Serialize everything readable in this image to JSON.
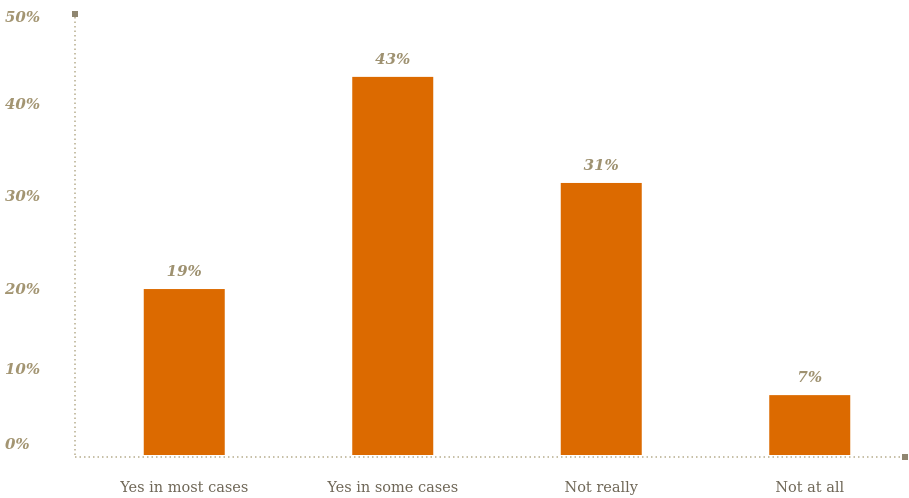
{
  "chart_data": {
    "type": "bar",
    "categories": [
      "Yes in most cases",
      "Yes in some cases",
      "Not really",
      "Not at all"
    ],
    "values": [
      19,
      43,
      31,
      7
    ],
    "data_labels": [
      "19%",
      "43%",
      "31%",
      "7%"
    ],
    "ylim": [
      0,
      50
    ],
    "y_ticks": [
      0,
      10,
      20,
      30,
      40,
      50
    ],
    "y_tick_labels": [
      "0%",
      "10%",
      "20%",
      "30%",
      "40%",
      "50%"
    ],
    "grid": false,
    "legend": "none",
    "title": "",
    "xlabel": "",
    "ylabel": "",
    "colors": {
      "bar": "#dc6a00",
      "axis": "#b5ab8c",
      "axis_end": "#8f8670"
    }
  }
}
